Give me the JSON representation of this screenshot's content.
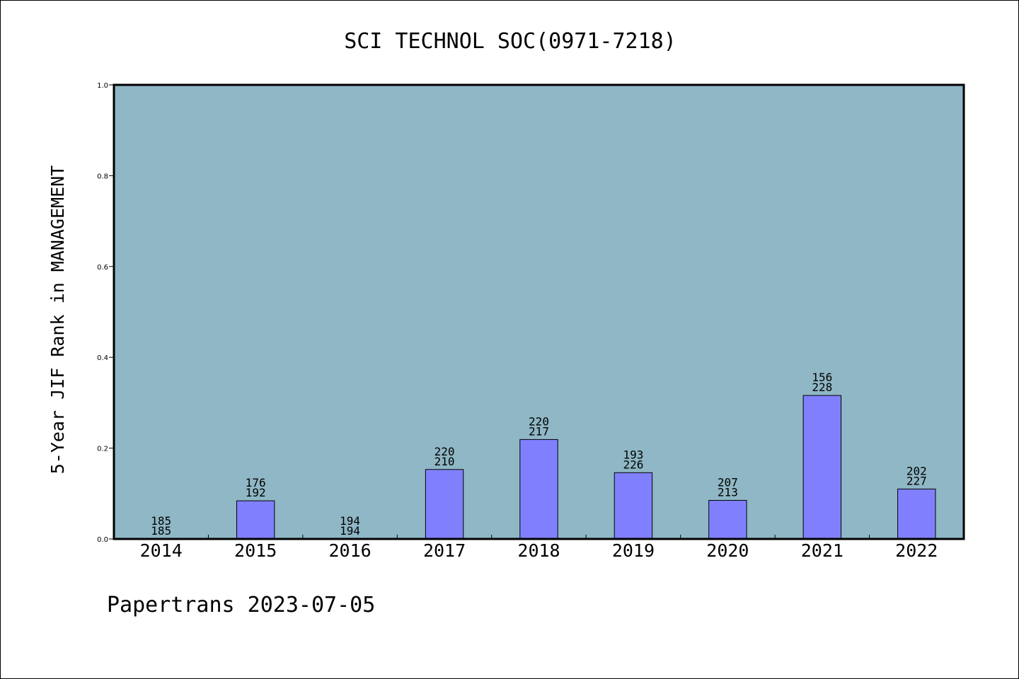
{
  "chart_data": {
    "type": "bar",
    "title": "SCI TECHNOL SOC(0971-7218)",
    "ylabel": "5-Year JIF Rank in MANAGEMENT",
    "xlabel": "",
    "ylim": [
      0,
      1.0
    ],
    "yticks": [
      "0.0",
      "0.2",
      "0.4",
      "0.6",
      "0.8",
      "1.0"
    ],
    "categories": [
      "2014",
      "2015",
      "2016",
      "2017",
      "2018",
      "2019",
      "2020",
      "2021",
      "2022"
    ],
    "values": [
      0.0,
      0.084,
      0.0,
      0.153,
      0.219,
      0.146,
      0.085,
      0.316,
      0.11
    ],
    "labels_top": [
      "185",
      "176",
      "194",
      "220",
      "220",
      "193",
      "207",
      "156",
      "202"
    ],
    "labels_bottom": [
      "185",
      "192",
      "194",
      "210",
      "217",
      "226",
      "213",
      "228",
      "227"
    ],
    "grid": false,
    "colors": {
      "plot_background": "#8fb7c5",
      "bar_fill": "#8080ff",
      "bar_stroke": "#000000"
    }
  },
  "footer": {
    "text": "Papertrans 2023-07-05"
  }
}
